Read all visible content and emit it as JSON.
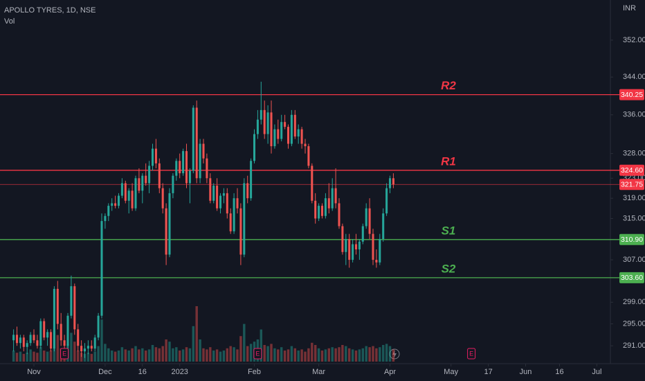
{
  "chart_data": {
    "type": "candlestick",
    "title": "APOLLO TYRES, 1D, NSE",
    "volume_label": "Vol",
    "currency": "INR",
    "log_scale": true,
    "grid": false,
    "up_color": "#26a69a",
    "down_color": "#ef5350",
    "ylim": [
      288.4,
      360.9
    ],
    "yticks": [
      {
        "value": 352,
        "label": "352.00"
      },
      {
        "value": 344,
        "label": "344.00"
      },
      {
        "value": 336,
        "label": "336.00"
      },
      {
        "value": 328,
        "label": "328.00"
      },
      {
        "value": 323,
        "label": "323.00"
      },
      {
        "value": 319,
        "label": "319.00"
      },
      {
        "value": 315,
        "label": "315.00"
      },
      {
        "value": 307,
        "label": "307.00"
      },
      {
        "value": 299,
        "label": "299.00"
      },
      {
        "value": 295,
        "label": "295.00"
      },
      {
        "value": 291,
        "label": "291.00"
      }
    ],
    "xlim": [
      -4,
      176
    ],
    "xticks": [
      {
        "value": 6,
        "label": "Nov"
      },
      {
        "value": 27,
        "label": "Dec"
      },
      {
        "value": 38,
        "label": "16"
      },
      {
        "value": 49,
        "label": "2023"
      },
      {
        "value": 71,
        "label": "Feb"
      },
      {
        "value": 90,
        "label": "Mar"
      },
      {
        "value": 111,
        "label": "Apr"
      },
      {
        "value": 129,
        "label": "May"
      },
      {
        "value": 140,
        "label": "17"
      },
      {
        "value": 151,
        "label": "Jun"
      },
      {
        "value": 161,
        "label": "16"
      },
      {
        "value": 172,
        "label": "Jul"
      }
    ],
    "levels": [
      {
        "name": "R2",
        "value": 340.25,
        "label": "340.25",
        "color": "#f23645"
      },
      {
        "name": "R1",
        "value": 324.6,
        "label": "324.60",
        "color": "#f23645"
      },
      {
        "value": 321.75,
        "label": "321.75",
        "color": "#f23645"
      },
      {
        "name": "S1",
        "value": 310.9,
        "label": "310.90",
        "color": "#4caf50"
      },
      {
        "name": "S2",
        "value": 303.6,
        "label": "303.60",
        "color": "#4caf50"
      }
    ],
    "events": [
      {
        "x": 15,
        "label": "E"
      },
      {
        "x": 72,
        "label": "E"
      },
      {
        "x": 135,
        "label": "E"
      }
    ],
    "candles": [
      [
        292,
        294,
        290,
        293
      ],
      [
        293,
        294.5,
        291,
        291.5
      ],
      [
        291.5,
        293,
        290.5,
        292.5
      ],
      [
        292.5,
        293,
        290,
        290.8
      ],
      [
        290.8,
        292,
        289.5,
        291.5
      ],
      [
        291.5,
        293.5,
        291,
        293
      ],
      [
        293,
        294,
        291.5,
        292
      ],
      [
        292,
        293,
        290.5,
        291
      ],
      [
        291,
        296,
        290.5,
        295.5
      ],
      [
        295.5,
        296,
        292,
        292.5
      ],
      [
        292.5,
        294,
        291,
        293.5
      ],
      [
        293.5,
        294,
        290,
        290.5
      ],
      [
        290.5,
        302,
        290,
        301.5
      ],
      [
        301.5,
        303,
        294,
        295
      ],
      [
        295,
        297,
        291,
        292
      ],
      [
        292,
        293,
        290,
        291
      ],
      [
        291,
        297,
        290.5,
        296.5
      ],
      [
        296.5,
        304,
        296,
        302
      ],
      [
        302,
        302.5,
        293,
        294
      ],
      [
        294,
        295,
        290,
        291
      ],
      [
        291,
        292,
        289,
        290
      ],
      [
        290,
        291.5,
        288.8,
        290.5
      ],
      [
        290.5,
        292,
        289.5,
        291
      ],
      [
        291,
        292,
        290,
        290.5
      ],
      [
        290.5,
        293,
        290,
        292.5
      ],
      [
        292.5,
        297,
        292,
        296.5
      ],
      [
        296.5,
        316,
        296,
        314.5
      ],
      [
        314.5,
        316,
        313,
        315.5
      ],
      [
        315.5,
        318,
        314.5,
        317.5
      ],
      [
        317.5,
        319,
        316.5,
        318
      ],
      [
        318,
        319.5,
        317,
        317.5
      ],
      [
        317.5,
        320,
        317,
        319.5
      ],
      [
        319.5,
        323,
        319,
        322
      ],
      [
        322,
        322.5,
        318,
        318.5
      ],
      [
        318.5,
        321,
        316,
        320.5
      ],
      [
        320.5,
        322,
        316.5,
        317
      ],
      [
        317,
        323.5,
        316.5,
        323
      ],
      [
        323,
        325,
        320,
        320.5
      ],
      [
        320.5,
        324,
        318,
        323.5
      ],
      [
        323.5,
        326,
        321.5,
        322
      ],
      [
        322,
        326.5,
        320,
        325.5
      ],
      [
        325.5,
        330,
        324.5,
        329
      ],
      [
        329,
        331,
        325,
        326
      ],
      [
        326,
        327,
        320,
        321
      ],
      [
        321,
        322,
        316,
        317
      ],
      [
        317,
        318,
        306,
        308
      ],
      [
        308,
        321,
        307.5,
        320
      ],
      [
        320,
        324,
        319,
        323.5
      ],
      [
        323.5,
        327,
        322.5,
        326.5
      ],
      [
        326.5,
        328,
        323,
        324
      ],
      [
        324,
        329,
        323.5,
        328.5
      ],
      [
        328.5,
        330,
        321,
        322
      ],
      [
        322,
        325,
        318,
        324.5
      ],
      [
        324.5,
        338,
        324,
        337.5
      ],
      [
        337.5,
        339,
        322,
        323
      ],
      [
        323,
        331,
        322,
        330
      ],
      [
        330,
        331,
        326,
        327
      ],
      [
        327,
        328,
        322,
        323
      ],
      [
        323,
        324,
        318,
        318.5
      ],
      [
        318.5,
        322,
        318,
        321.5
      ],
      [
        321.5,
        323,
        316.5,
        317
      ],
      [
        317,
        320,
        316,
        319.5
      ],
      [
        319.5,
        321,
        318,
        320
      ],
      [
        320,
        321,
        315,
        316
      ],
      [
        316,
        317,
        312,
        312.5
      ],
      [
        312.5,
        320,
        312,
        319
      ],
      [
        319,
        321,
        316,
        317
      ],
      [
        317,
        318,
        306,
        308
      ],
      [
        308,
        323,
        307.5,
        322
      ],
      [
        322,
        323.5,
        318,
        319
      ],
      [
        319,
        327,
        318.5,
        326.5
      ],
      [
        326.5,
        333,
        326,
        332
      ],
      [
        332,
        337,
        331,
        335
      ],
      [
        335,
        343,
        334,
        337
      ],
      [
        337,
        339,
        331,
        332
      ],
      [
        332,
        338,
        330,
        336.5
      ],
      [
        336.5,
        339,
        328,
        329.5
      ],
      [
        329.5,
        334,
        329,
        333
      ],
      [
        333,
        335,
        330,
        331
      ],
      [
        331,
        336,
        330.5,
        334.5
      ],
      [
        334.5,
        336,
        333,
        333.5
      ],
      [
        333.5,
        334,
        329,
        330
      ],
      [
        330,
        337,
        329.5,
        336
      ],
      [
        336,
        337,
        331,
        331.5
      ],
      [
        331.5,
        334,
        330,
        333
      ],
      [
        333,
        333.5,
        329,
        330
      ],
      [
        330,
        331,
        328,
        329.5
      ],
      [
        329.5,
        330,
        325,
        325.5
      ],
      [
        325.5,
        326,
        318,
        318.5
      ],
      [
        318.5,
        320,
        314,
        315
      ],
      [
        315,
        318,
        314.5,
        317.5
      ],
      [
        317.5,
        318,
        315,
        315.5
      ],
      [
        315.5,
        320,
        315,
        319
      ],
      [
        319,
        322,
        316,
        317
      ],
      [
        317,
        323,
        316.5,
        321
      ],
      [
        321,
        325,
        317,
        318
      ],
      [
        318,
        319,
        313,
        313.5
      ],
      [
        313.5,
        314,
        308,
        308.5
      ],
      [
        308.5,
        312,
        306,
        311
      ],
      [
        311,
        312,
        305.5,
        307
      ],
      [
        307,
        311,
        306.5,
        310
      ],
      [
        310,
        312,
        308,
        309
      ],
      [
        309,
        311,
        307,
        310.5
      ],
      [
        310.5,
        314,
        310,
        313.5
      ],
      [
        313.5,
        318,
        313,
        317
      ],
      [
        317,
        319,
        311,
        312
      ],
      [
        312,
        313,
        306,
        307
      ],
      [
        307,
        309,
        305.5,
        306.5
      ],
      [
        306.5,
        312,
        306,
        311
      ],
      [
        311,
        317,
        310.5,
        316
      ],
      [
        316,
        322,
        315.5,
        321
      ],
      [
        321,
        323.5,
        320,
        323
      ],
      [
        323,
        324,
        321,
        321.75
      ]
    ],
    "volume": [
      1.0,
      0.8,
      0.9,
      0.7,
      0.8,
      1.1,
      0.9,
      0.8,
      1.3,
      1.0,
      0.9,
      1.0,
      2.8,
      2.4,
      1.2,
      0.9,
      1.6,
      2.6,
      1.8,
      1.0,
      0.8,
      0.7,
      0.8,
      0.7,
      0.9,
      1.4,
      3.8,
      1.6,
      1.2,
      1.0,
      0.9,
      1.0,
      1.3,
      1.1,
      1.0,
      1.2,
      1.4,
      1.1,
      1.2,
      1.0,
      1.1,
      1.5,
      1.3,
      1.2,
      1.4,
      2.0,
      1.8,
      1.2,
      1.3,
      1.0,
      1.1,
      1.3,
      1.2,
      3.2,
      5.0,
      2.0,
      1.2,
      1.1,
      1.3,
      1.0,
      1.1,
      0.9,
      1.0,
      1.2,
      1.4,
      1.3,
      1.1,
      2.3,
      3.4,
      1.4,
      1.6,
      1.8,
      2.0,
      2.9,
      1.5,
      1.4,
      1.6,
      1.2,
      1.1,
      1.3,
      1.0,
      1.1,
      1.4,
      1.2,
      1.0,
      1.1,
      0.9,
      1.2,
      1.7,
      1.5,
      1.2,
      1.0,
      1.1,
      1.2,
      1.3,
      1.2,
      1.3,
      1.5,
      1.4,
      1.2,
      1.1,
      1.0,
      1.1,
      1.2,
      1.4,
      1.3,
      1.4,
      1.2,
      1.3,
      1.5,
      1.6,
      1.4,
      1.1
    ]
  }
}
